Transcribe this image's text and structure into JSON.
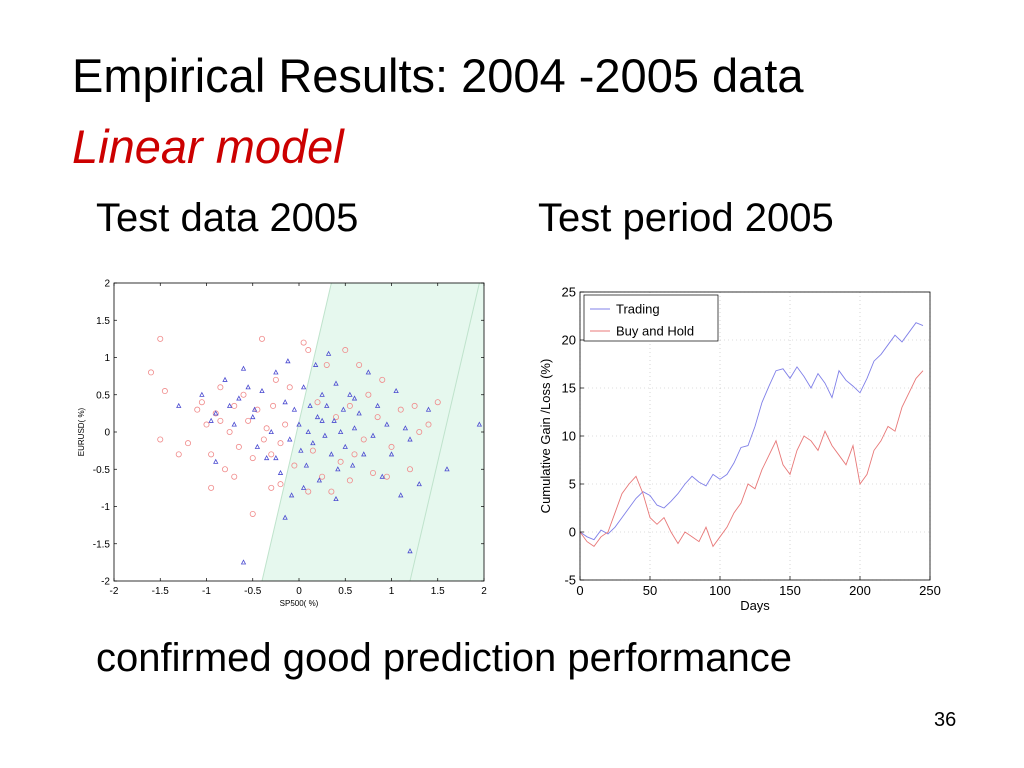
{
  "slide": {
    "title": "Empirical Results: 2004 -2005 data",
    "subtitle": "Linear model",
    "caption_left": "Test data 2005",
    "caption_right": "Test period 2005",
    "conclusion": "confirmed good prediction performance",
    "page_number": "36"
  },
  "colors": {
    "title_accent": "#cc0000",
    "region_fill": "#e6f8ee",
    "circle_series": "#f08a8a",
    "triangle_series": "#4a4ad0",
    "trading_line": "#8080e8",
    "buy_hold_line": "#e87878"
  },
  "chart_data": [
    {
      "type": "scatter",
      "title": "",
      "xlabel": "SP500( %)",
      "ylabel": "EURUSD( %)",
      "xlim": [
        -2,
        2
      ],
      "ylim": [
        -2,
        2
      ],
      "xticks": [
        "-2",
        "-1.5",
        "-1",
        "-0.5",
        "0",
        "0.5",
        "1",
        "1.5",
        "2"
      ],
      "yticks": [
        "2",
        "1.5",
        "1",
        "0.5",
        "0",
        "-0.5",
        "-1",
        "-1.5",
        "-2"
      ],
      "region": {
        "lower_boundary_x_at_ymin": -0.4,
        "lower_boundary_x_at_ymax": 0.35,
        "upper_boundary_x_at_ymin": 1.2,
        "upper_boundary_x_at_ymax": 1.95
      },
      "series": [
        {
          "marker": "circle",
          "points": [
            [
              -1.6,
              0.8
            ],
            [
              -1.5,
              1.25
            ],
            [
              -1.45,
              0.55
            ],
            [
              -1.5,
              -0.1
            ],
            [
              -1.2,
              -0.15
            ],
            [
              -1.1,
              0.3
            ],
            [
              -1.05,
              0.4
            ],
            [
              -1.0,
              0.1
            ],
            [
              -0.95,
              -0.3
            ],
            [
              -0.9,
              0.25
            ],
            [
              -0.85,
              0.6
            ],
            [
              -0.8,
              -0.5
            ],
            [
              -0.75,
              0.0
            ],
            [
              -0.7,
              0.35
            ],
            [
              -0.65,
              -0.2
            ],
            [
              -0.6,
              0.5
            ],
            [
              -0.55,
              0.15
            ],
            [
              -0.5,
              -0.35
            ],
            [
              -0.45,
              0.3
            ],
            [
              -0.4,
              1.25
            ],
            [
              -0.38,
              -0.1
            ],
            [
              -0.35,
              0.05
            ],
            [
              -0.3,
              -0.3
            ],
            [
              -0.28,
              0.35
            ],
            [
              -0.25,
              0.7
            ],
            [
              -0.2,
              -0.15
            ],
            [
              -0.15,
              0.1
            ],
            [
              -0.1,
              0.6
            ],
            [
              -0.05,
              -0.45
            ],
            [
              0.05,
              1.2
            ],
            [
              0.1,
              1.1
            ],
            [
              0.15,
              -0.25
            ],
            [
              0.2,
              0.4
            ],
            [
              0.25,
              -0.6
            ],
            [
              0.3,
              0.9
            ],
            [
              0.35,
              -0.8
            ],
            [
              0.4,
              0.2
            ],
            [
              0.45,
              -0.4
            ],
            [
              0.5,
              1.1
            ],
            [
              0.55,
              0.35
            ],
            [
              0.6,
              -0.3
            ],
            [
              0.65,
              0.9
            ],
            [
              0.7,
              -0.1
            ],
            [
              0.75,
              0.5
            ],
            [
              0.8,
              -0.55
            ],
            [
              0.85,
              0.2
            ],
            [
              0.9,
              0.7
            ],
            [
              1.0,
              -0.2
            ],
            [
              1.1,
              0.3
            ],
            [
              1.2,
              -0.5
            ],
            [
              1.25,
              0.35
            ],
            [
              1.3,
              0.0
            ],
            [
              1.4,
              0.1
            ],
            [
              1.5,
              0.4
            ],
            [
              -0.5,
              -1.1
            ],
            [
              -0.3,
              -0.75
            ],
            [
              -0.95,
              -0.75
            ],
            [
              -0.7,
              -0.6
            ],
            [
              -0.2,
              -0.7
            ],
            [
              0.1,
              -0.8
            ],
            [
              0.55,
              -0.65
            ],
            [
              0.95,
              -0.6
            ],
            [
              -1.3,
              -0.3
            ],
            [
              -0.85,
              0.15
            ]
          ]
        },
        {
          "marker": "triangle",
          "points": [
            [
              -1.3,
              0.35
            ],
            [
              -1.05,
              0.5
            ],
            [
              -0.95,
              0.15
            ],
            [
              -0.9,
              -0.4
            ],
            [
              -0.8,
              0.7
            ],
            [
              -0.75,
              0.35
            ],
            [
              -0.7,
              0.1
            ],
            [
              -0.65,
              0.45
            ],
            [
              -0.6,
              0.85
            ],
            [
              -0.55,
              0.6
            ],
            [
              -0.5,
              0.2
            ],
            [
              -0.48,
              0.3
            ],
            [
              -0.45,
              -0.2
            ],
            [
              -0.4,
              0.55
            ],
            [
              -0.35,
              -0.35
            ],
            [
              -0.3,
              0.0
            ],
            [
              -0.25,
              0.8
            ],
            [
              -0.2,
              -0.55
            ],
            [
              -0.15,
              0.4
            ],
            [
              -0.12,
              0.95
            ],
            [
              -0.1,
              -0.1
            ],
            [
              -0.08,
              -0.85
            ],
            [
              -0.05,
              0.3
            ],
            [
              0.0,
              0.1
            ],
            [
              0.02,
              -0.25
            ],
            [
              0.05,
              0.6
            ],
            [
              0.08,
              -0.45
            ],
            [
              0.1,
              0.0
            ],
            [
              0.12,
              0.35
            ],
            [
              0.15,
              -0.15
            ],
            [
              0.18,
              0.9
            ],
            [
              0.2,
              0.2
            ],
            [
              0.22,
              -0.65
            ],
            [
              0.25,
              0.5
            ],
            [
              0.28,
              -0.05
            ],
            [
              0.3,
              0.35
            ],
            [
              0.32,
              1.05
            ],
            [
              0.35,
              -0.3
            ],
            [
              0.38,
              0.15
            ],
            [
              0.4,
              0.65
            ],
            [
              0.42,
              -0.5
            ],
            [
              0.45,
              0.0
            ],
            [
              0.48,
              0.3
            ],
            [
              0.5,
              -0.2
            ],
            [
              0.55,
              0.5
            ],
            [
              0.58,
              -0.45
            ],
            [
              0.6,
              0.05
            ],
            [
              0.65,
              0.25
            ],
            [
              0.7,
              -0.3
            ],
            [
              0.75,
              0.8
            ],
            [
              0.8,
              -0.05
            ],
            [
              0.85,
              0.35
            ],
            [
              0.9,
              -0.6
            ],
            [
              0.95,
              0.1
            ],
            [
              1.0,
              -0.3
            ],
            [
              1.05,
              0.55
            ],
            [
              1.1,
              -0.85
            ],
            [
              1.15,
              0.05
            ],
            [
              1.2,
              -0.1
            ],
            [
              1.3,
              -0.7
            ],
            [
              1.4,
              0.3
            ],
            [
              1.6,
              -0.5
            ],
            [
              1.95,
              0.1
            ],
            [
              -0.6,
              -1.75
            ],
            [
              1.2,
              -1.6
            ],
            [
              -0.15,
              -1.15
            ],
            [
              0.05,
              -0.75
            ],
            [
              0.4,
              -0.9
            ],
            [
              -0.25,
              -0.35
            ],
            [
              0.6,
              0.45
            ],
            [
              -0.9,
              0.25
            ],
            [
              0.25,
              0.15
            ]
          ]
        }
      ]
    },
    {
      "type": "line",
      "title": "",
      "xlabel": "Days",
      "ylabel": "Cumulative Gain /Loss (%)",
      "xlim": [
        0,
        250
      ],
      "ylim": [
        -5,
        25
      ],
      "xticks": [
        "0",
        "50",
        "100",
        "150",
        "200",
        "250"
      ],
      "yticks": [
        "25",
        "20",
        "15",
        "10",
        "5",
        "0",
        "-5"
      ],
      "legend": "top-left",
      "series": [
        {
          "name": "Trading",
          "x": [
            0,
            5,
            10,
            15,
            20,
            25,
            30,
            35,
            40,
            45,
            50,
            55,
            60,
            65,
            70,
            75,
            80,
            85,
            90,
            95,
            100,
            105,
            110,
            115,
            120,
            125,
            130,
            135,
            140,
            145,
            150,
            155,
            160,
            165,
            170,
            175,
            180,
            185,
            190,
            195,
            200,
            205,
            210,
            215,
            220,
            225,
            230,
            235,
            240,
            245
          ],
          "values": [
            0,
            -0.5,
            -0.8,
            0.2,
            -0.2,
            0.5,
            1.5,
            2.5,
            3.5,
            4.2,
            3.8,
            2.8,
            2.5,
            3.2,
            4.0,
            5.0,
            5.8,
            5.2,
            4.8,
            6.0,
            5.5,
            6.0,
            7.2,
            8.8,
            9.0,
            11.0,
            13.5,
            15.2,
            16.8,
            17.0,
            16.0,
            17.2,
            16.2,
            15.0,
            16.5,
            15.5,
            14.0,
            16.8,
            15.8,
            15.2,
            14.5,
            16.0,
            17.8,
            18.5,
            19.5,
            20.5,
            19.8,
            20.8,
            21.8,
            21.5
          ]
        },
        {
          "name": "Buy and Hold",
          "x": [
            0,
            5,
            10,
            15,
            20,
            25,
            30,
            35,
            40,
            45,
            50,
            55,
            60,
            65,
            70,
            75,
            80,
            85,
            90,
            95,
            100,
            105,
            110,
            115,
            120,
            125,
            130,
            135,
            140,
            145,
            150,
            155,
            160,
            165,
            170,
            175,
            180,
            185,
            190,
            195,
            200,
            205,
            210,
            215,
            220,
            225,
            230,
            235,
            240,
            245
          ],
          "values": [
            0,
            -1.0,
            -1.5,
            -0.5,
            0.0,
            2.0,
            4.0,
            5.0,
            5.8,
            4.0,
            1.5,
            0.8,
            1.5,
            0.0,
            -1.2,
            0.0,
            -0.5,
            -1.0,
            0.5,
            -1.5,
            -0.5,
            0.5,
            2.0,
            3.0,
            5.0,
            4.5,
            6.5,
            8.0,
            9.5,
            7.0,
            6.0,
            8.5,
            10.0,
            9.5,
            8.5,
            10.5,
            9.0,
            8.0,
            7.0,
            9.0,
            5.0,
            6.0,
            8.5,
            9.5,
            11.0,
            10.5,
            13.0,
            14.5,
            16.0,
            16.8
          ]
        }
      ]
    }
  ]
}
